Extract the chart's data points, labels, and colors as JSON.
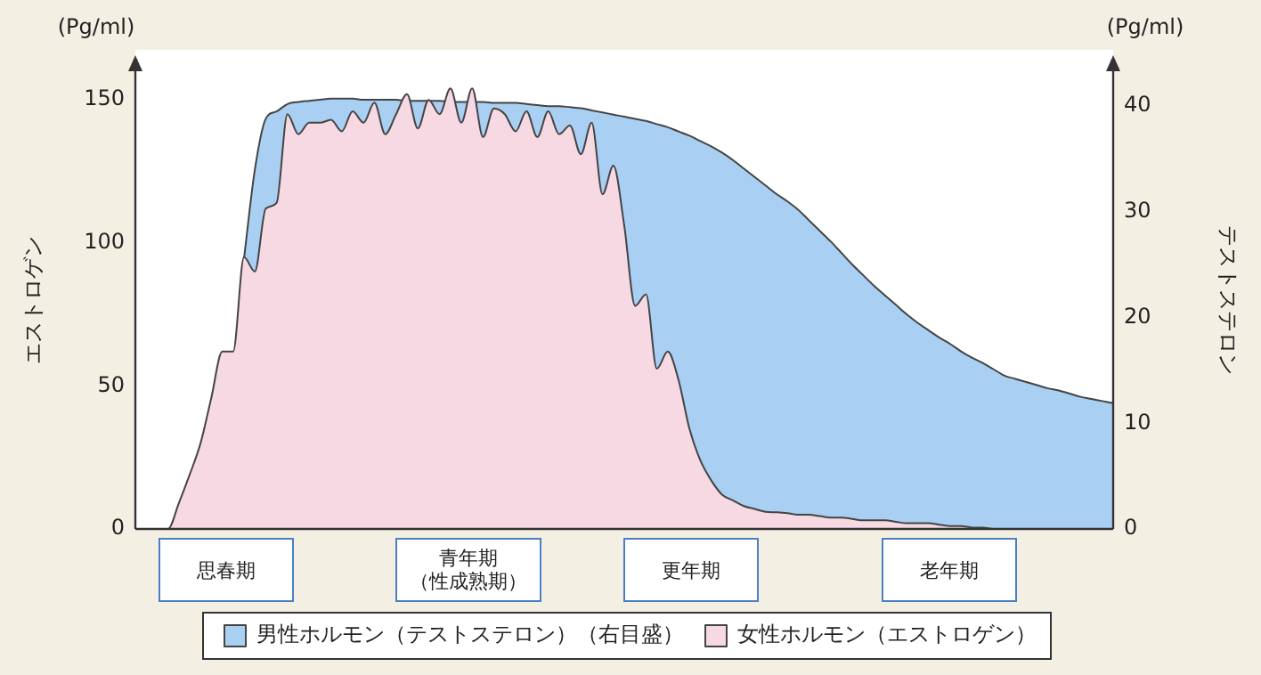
{
  "chart_data": {
    "type": "area",
    "ylabel": "エストロゲン",
    "y2label": "テストステロン",
    "annotations": [
      "(Pg/ml)",
      "(Pg/ml)",
      "思春期",
      "青年期（性成熟期）",
      "更年期",
      "老年期"
    ],
    "categories": [
      null,
      null,
      null,
      null,
      null,
      null,
      null,
      null,
      null,
      null,
      null,
      null,
      null,
      null,
      null,
      null,
      null,
      null,
      null,
      null,
      null,
      null,
      null,
      null,
      null,
      null,
      null,
      null,
      null,
      null,
      null,
      null,
      null,
      null,
      null,
      null,
      null,
      null,
      null,
      null,
      null,
      null,
      null,
      null,
      null,
      null,
      null,
      null,
      null,
      null,
      null,
      null,
      null,
      null,
      null,
      null,
      null,
      null,
      null,
      null,
      null,
      null,
      null,
      null,
      null,
      null,
      null,
      null,
      null,
      null,
      null,
      null,
      null,
      null,
      null,
      null,
      null,
      null,
      null,
      null,
      null,
      null,
      null,
      null,
      null,
      null,
      null,
      null,
      null,
      null,
      null
    ],
    "series": [
      {
        "name": "男性ホルモン（テストステロン）（右目盛）",
        "color": "#a9d0f2",
        "axis": "y2",
        "values": [
          null,
          null,
          null,
          null,
          null,
          null,
          null,
          null,
          null,
          null,
          25.6,
          34,
          38.8,
          39.5,
          40.2,
          40.4,
          40.5,
          40.6,
          40.7,
          40.7,
          40.7,
          40.6,
          40.6,
          40.6,
          40.6,
          40.5,
          40.5,
          40.5,
          40.5,
          40.4,
          40.4,
          40.4,
          40.4,
          40.3,
          40.3,
          40.3,
          40.2,
          40.1,
          40,
          40,
          39.9,
          39.8,
          39.6,
          39.4,
          39.2,
          39,
          38.8,
          38.6,
          38.3,
          38,
          37.6,
          37.2,
          36.7,
          36.2,
          35.6,
          34.9,
          34.1,
          33.3,
          32.5,
          31.7,
          31,
          30.2,
          29.2,
          28.2,
          27.2,
          26.1,
          25,
          24,
          23,
          22.1,
          21.2,
          20.3,
          19.5,
          18.8,
          18.1,
          17.5,
          16.8,
          16.2,
          15.7,
          15.1,
          14.5,
          14.2,
          13.9,
          13.6,
          13.3,
          13.1,
          12.8,
          12.5,
          12.3,
          12.1,
          11.9
        ]
      },
      {
        "name": "女性ホルモン（エストロゲン）",
        "color": "#f7d9e4",
        "values": [
          0,
          0,
          0,
          0,
          9,
          19,
          30,
          46,
          62,
          62,
          95,
          90,
          112,
          114,
          145,
          138,
          142,
          142,
          143,
          139,
          146,
          142,
          149,
          138,
          145,
          152,
          140,
          150,
          145,
          154,
          142,
          154,
          137,
          147,
          145,
          139,
          146,
          137,
          146,
          138,
          141,
          131,
          142,
          117,
          127,
          106,
          78,
          82,
          56,
          62,
          52,
          35,
          24,
          17,
          12,
          10,
          8,
          7,
          6,
          5.8,
          5.5,
          5,
          5,
          4.5,
          4,
          4,
          3.5,
          3,
          3,
          3,
          2.5,
          2,
          2,
          2,
          1.5,
          1,
          1,
          0.5,
          0.5,
          0,
          0,
          0,
          0,
          0,
          0,
          0,
          0,
          0,
          0,
          0,
          0
        ]
      }
    ],
    "ylim": [
      0,
      160
    ],
    "yticks": [
      0,
      50,
      100,
      150
    ],
    "y2lim": [
      0,
      43.3
    ],
    "y2ticks": [
      0,
      10,
      20,
      30,
      40
    ],
    "grid": false,
    "legend": "bottom",
    "marker": "none",
    "line_style": "solid"
  }
}
